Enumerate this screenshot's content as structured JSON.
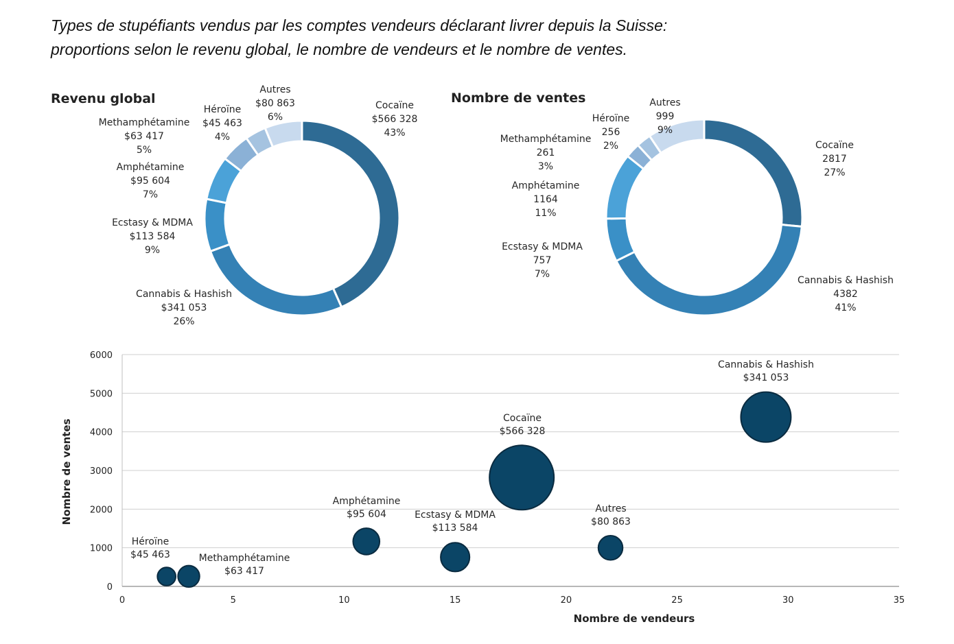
{
  "page": {
    "title_line1": "Types de stupéfiants vendus par les comptes vendeurs déclarant livrer depuis la Suisse:",
    "title_line2": "proportions selon le revenu global, le nombre de vendeurs et le nombre de ventes."
  },
  "colors": {
    "Cocaïne": "#2e6b94",
    "Cannabis & Hashish": "#3481b5",
    "Ecstasy & MDMA": "#3a90c7",
    "Amphétamine": "#4ba2d8",
    "Methamphétamine": "#8bb1d6",
    "Héroïne": "#a5c3e0",
    "Autres": "#c8daee",
    "bubble": "#0b4566",
    "bubble_stroke": "#0a2b40"
  },
  "chart_data": [
    {
      "type": "pie",
      "variant": "donut",
      "title": "Revenu global",
      "slices": [
        {
          "label": "Cocaïne",
          "value": "$566 328",
          "amount": 566328,
          "pct": "43%"
        },
        {
          "label": "Cannabis & Hashish",
          "value": "$341 053",
          "amount": 341053,
          "pct": "26%"
        },
        {
          "label": "Ecstasy & MDMA",
          "value": "$113 584",
          "amount": 113584,
          "pct": "9%"
        },
        {
          "label": "Amphétamine",
          "value": "$95 604",
          "amount": 95604,
          "pct": "7%"
        },
        {
          "label": "Methamphétamine",
          "value": "$63 417",
          "amount": 63417,
          "pct": "5%"
        },
        {
          "label": "Héroïne",
          "value": "$45 463",
          "amount": 45463,
          "pct": "4%"
        },
        {
          "label": "Autres",
          "value": "$80 863",
          "amount": 80863,
          "pct": "6%"
        }
      ]
    },
    {
      "type": "pie",
      "variant": "donut",
      "title": "Nombre de ventes",
      "slices": [
        {
          "label": "Cocaïne",
          "value": "2817",
          "amount": 2817,
          "pct": "27%"
        },
        {
          "label": "Cannabis & Hashish",
          "value": "4382",
          "amount": 4382,
          "pct": "41%"
        },
        {
          "label": "Ecstasy & MDMA",
          "value": "757",
          "amount": 757,
          "pct": "7%"
        },
        {
          "label": "Amphétamine",
          "value": "1164",
          "amount": 1164,
          "pct": "11%"
        },
        {
          "label": "Methamphétamine",
          "value": "261",
          "amount": 261,
          "pct": "3%"
        },
        {
          "label": "Héroïne",
          "value": "256",
          "amount": 256,
          "pct": "2%"
        },
        {
          "label": "Autres",
          "value": "999",
          "amount": 999,
          "pct": "9%"
        }
      ]
    },
    {
      "type": "scatter",
      "variant": "bubble",
      "xlabel": "Nombre de vendeurs",
      "ylabel": "Nombre de ventes",
      "xlim": [
        0,
        35
      ],
      "ylim": [
        0,
        6000
      ],
      "xticks": [
        0,
        5,
        10,
        15,
        20,
        25,
        30,
        35
      ],
      "yticks": [
        0,
        1000,
        2000,
        3000,
        4000,
        5000,
        6000
      ],
      "grid": "horizontal",
      "points": [
        {
          "label": "Héroïne",
          "value": "$45 463",
          "x": 2,
          "y": 256,
          "size": 45463
        },
        {
          "label": "Methamphétamine",
          "value": "$63 417",
          "x": 3,
          "y": 261,
          "size": 63417
        },
        {
          "label": "Amphétamine",
          "value": "$95 604",
          "x": 11,
          "y": 1164,
          "size": 95604
        },
        {
          "label": "Ecstasy & MDMA",
          "value": "$113 584",
          "x": 15,
          "y": 757,
          "size": 113584
        },
        {
          "label": "Cocaïne",
          "value": "$566 328",
          "x": 18,
          "y": 2817,
          "size": 566328
        },
        {
          "label": "Autres",
          "value": "$80 863",
          "x": 22,
          "y": 999,
          "size": 80863
        },
        {
          "label": "Cannabis & Hashish",
          "value": "$341 053",
          "x": 29,
          "y": 4382,
          "size": 341053
        }
      ]
    }
  ]
}
